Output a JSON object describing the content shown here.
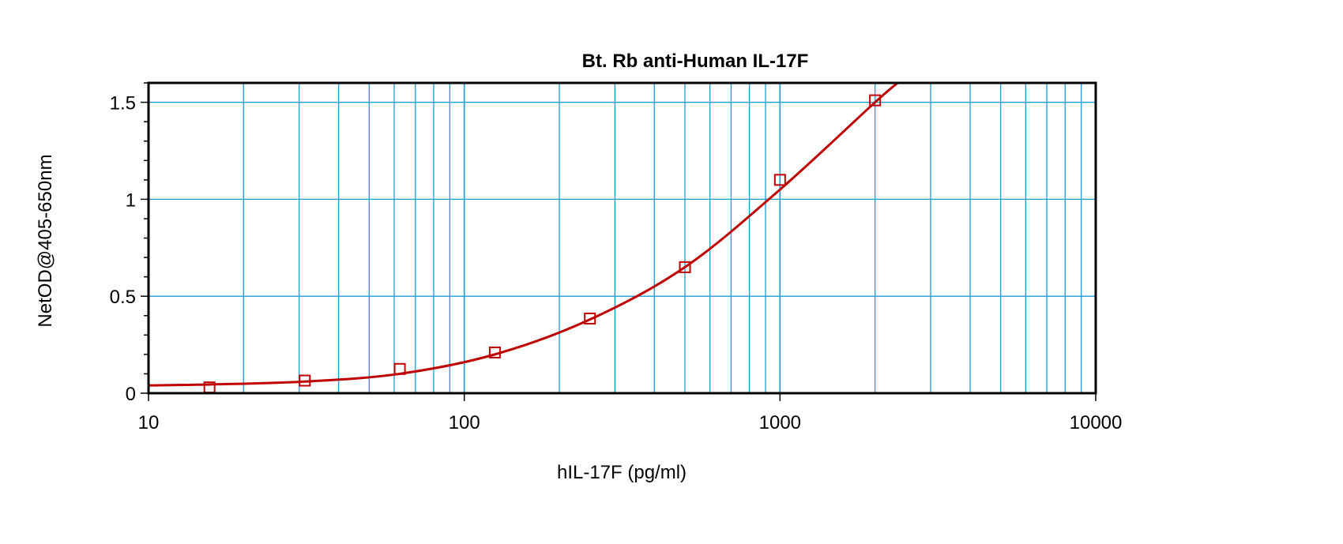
{
  "chart_data": {
    "type": "scatter",
    "title": "Bt. Rb anti-Human IL-17F",
    "xlabel": "hIL-17F (pg/ml)",
    "ylabel": "NetOD@405-650nm",
    "xscale": "log",
    "xlim": [
      10,
      10000
    ],
    "ylim": [
      0,
      1.6
    ],
    "x_ticks": [
      10,
      100,
      1000,
      10000
    ],
    "x_tick_labels": [
      "10",
      "100",
      "1000",
      "10000"
    ],
    "y_ticks": [
      0,
      0.5,
      1,
      1.5
    ],
    "y_tick_labels": [
      "0",
      "0.5",
      "1",
      "1.5"
    ],
    "grid": true,
    "series": [
      {
        "marker": "open-square",
        "x": [
          15.6,
          31.25,
          62.5,
          125,
          250,
          500,
          1000,
          2000
        ],
        "y": [
          0.03,
          0.065,
          0.125,
          0.21,
          0.385,
          0.65,
          1.1,
          1.51
        ]
      }
    ],
    "fit_curve": {
      "x": [
        10,
        15.6,
        31.25,
        62.5,
        125,
        250,
        500,
        1000,
        2000,
        2360
      ],
      "y": [
        0.04,
        0.045,
        0.06,
        0.1,
        0.2,
        0.38,
        0.65,
        1.05,
        1.5,
        1.6
      ]
    },
    "colors": {
      "data": "#c00000",
      "grid": "#1a9bd7",
      "axes": "#000000"
    }
  }
}
